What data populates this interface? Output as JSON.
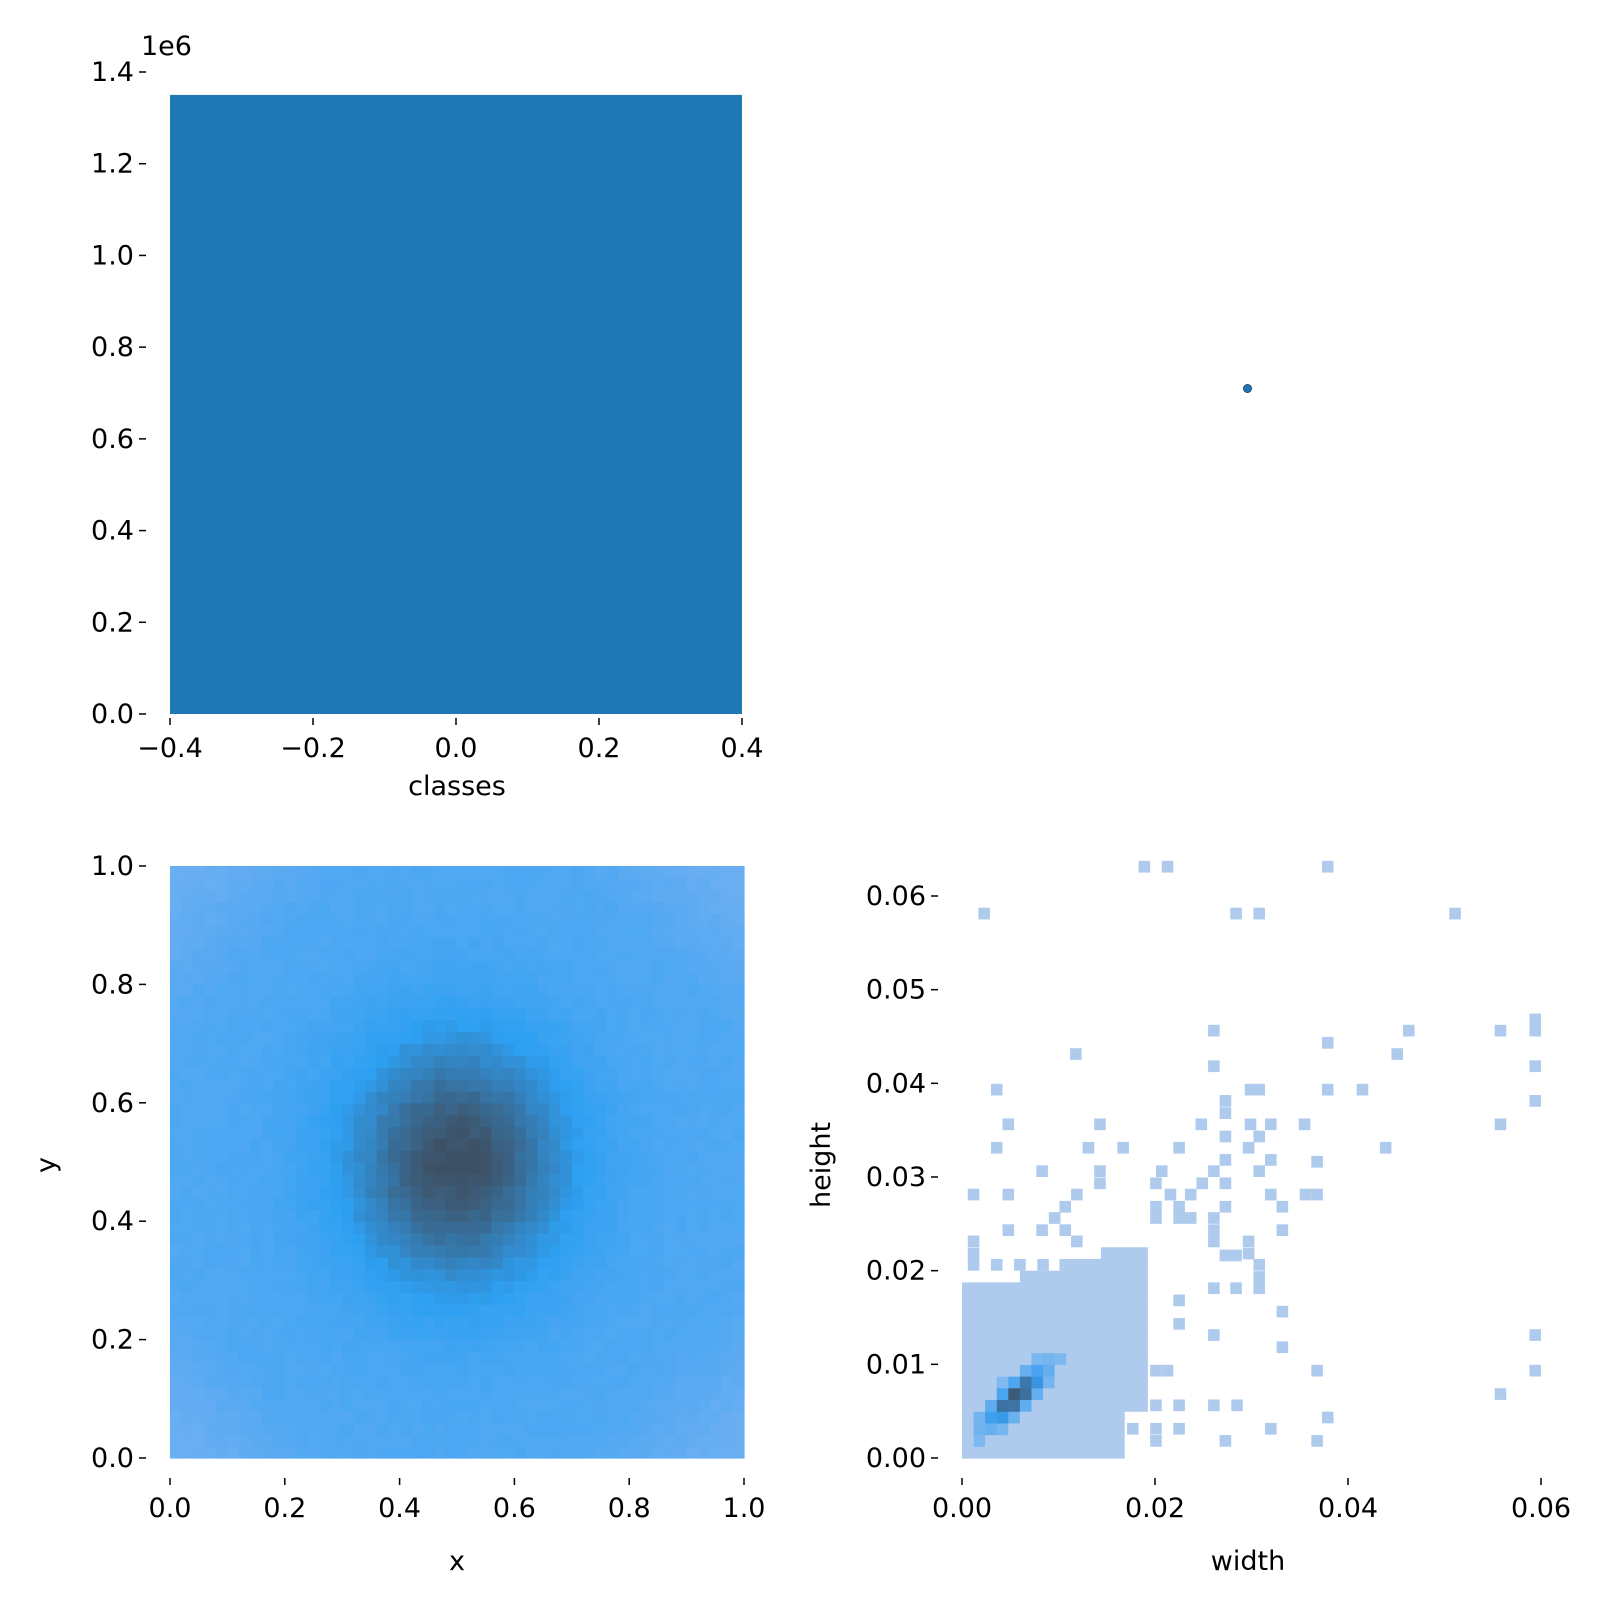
{
  "chart_data": [
    {
      "type": "bar",
      "xlabel": "classes",
      "ylabel": "",
      "xlim": [
        -0.4,
        0.4
      ],
      "ylim": [
        0,
        1400000
      ],
      "offset_label": "1e6",
      "x_ticks": [
        "−0.4",
        "−0.2",
        "0.0",
        "0.2",
        "0.4"
      ],
      "y_ticks": [
        "0.0",
        "0.2",
        "0.4",
        "0.6",
        "0.8",
        "1.0",
        "1.2",
        "1.4"
      ],
      "bars": [
        {
          "x_start": -0.4,
          "x_end": 0.4,
          "value": 1350000
        }
      ],
      "color": "#1f77b4"
    },
    {
      "type": "scatter",
      "xlabel": "",
      "ylabel": "",
      "points": [
        {
          "x": 0.5,
          "y": 0.5
        }
      ],
      "xlim": [
        0,
        1
      ],
      "ylim": [
        0,
        1
      ],
      "color": "#1f77b4",
      "axes_visible": false
    },
    {
      "type": "heatmap",
      "xlabel": "x",
      "ylabel": "y",
      "xlim": [
        0,
        1
      ],
      "ylim": [
        0,
        1
      ],
      "x_ticks": [
        "0.0",
        "0.2",
        "0.4",
        "0.6",
        "0.8",
        "1.0"
      ],
      "y_ticks": [
        "0.0",
        "0.2",
        "0.4",
        "0.6",
        "0.8",
        "1.0"
      ],
      "bins": 50,
      "description_peak": {
        "x": 0.5,
        "y": 0.5
      },
      "colors": {
        "low": "#6aaef2",
        "mid": "#2ea0f2",
        "high": "#3e5064"
      }
    },
    {
      "type": "heatmap",
      "xlabel": "width",
      "ylabel": "height",
      "xlim": [
        0,
        0.06
      ],
      "ylim": [
        0,
        0.063
      ],
      "x_ticks": [
        "0.00",
        "0.02",
        "0.04",
        "0.06"
      ],
      "y_ticks": [
        "0.00",
        "0.01",
        "0.02",
        "0.03",
        "0.04",
        "0.05",
        "0.06"
      ],
      "x_tick_values": [
        0,
        0.02,
        0.04,
        0.06
      ],
      "y_tick_values": [
        0,
        0.01,
        0.02,
        0.03,
        0.04,
        0.05,
        0.06
      ],
      "peak": {
        "x": 0.005,
        "y": 0.006
      },
      "colors": {
        "low": "#aecbee",
        "mid": "#3a9ef0",
        "high": "#3e5064"
      },
      "sparse_cells": [
        [
          0.0017,
          0.0575
        ],
        [
          0.0183,
          0.0625
        ],
        [
          0.0207,
          0.0625
        ],
        [
          0.0373,
          0.0625
        ],
        [
          0.0278,
          0.0575
        ],
        [
          0.0302,
          0.0575
        ],
        [
          0.0505,
          0.0575
        ],
        [
          0.0255,
          0.045
        ],
        [
          0.0457,
          0.045
        ],
        [
          0.0552,
          0.045
        ],
        [
          0.0588,
          0.045
        ],
        [
          0.0588,
          0.0462
        ],
        [
          0.0112,
          0.0425
        ],
        [
          0.0373,
          0.0437
        ],
        [
          0.0445,
          0.0425
        ],
        [
          0.0255,
          0.0412
        ],
        [
          0.0588,
          0.0412
        ],
        [
          0.003,
          0.0387
        ],
        [
          0.0293,
          0.0387
        ],
        [
          0.0302,
          0.0387
        ],
        [
          0.0373,
          0.0387
        ],
        [
          0.0409,
          0.0387
        ],
        [
          0.0588,
          0.0375
        ],
        [
          0.0267,
          0.0375
        ],
        [
          0.0267,
          0.0362
        ],
        [
          0.0042,
          0.035
        ],
        [
          0.0137,
          0.035
        ],
        [
          0.0242,
          0.035
        ],
        [
          0.0293,
          0.035
        ],
        [
          0.0314,
          0.035
        ],
        [
          0.0349,
          0.035
        ],
        [
          0.0552,
          0.035
        ],
        [
          0.0267,
          0.0337
        ],
        [
          0.0302,
          0.0337
        ],
        [
          0.003,
          0.0325
        ],
        [
          0.0125,
          0.0325
        ],
        [
          0.0161,
          0.0325
        ],
        [
          0.0219,
          0.0325
        ],
        [
          0.0291,
          0.0325
        ],
        [
          0.0433,
          0.0325
        ],
        [
          0.0267,
          0.0312
        ],
        [
          0.0314,
          0.0312
        ],
        [
          0.0362,
          0.031
        ],
        [
          0.0077,
          0.03
        ],
        [
          0.0137,
          0.03
        ],
        [
          0.0201,
          0.03
        ],
        [
          0.0255,
          0.03
        ],
        [
          0.0302,
          0.03
        ],
        [
          0.0137,
          0.0287
        ],
        [
          0.0195,
          0.0287
        ],
        [
          0.0243,
          0.0287
        ],
        [
          0.0267,
          0.0287
        ],
        [
          0.0006,
          0.0275
        ],
        [
          0.0042,
          0.0275
        ],
        [
          0.0113,
          0.0275
        ],
        [
          0.021,
          0.0275
        ],
        [
          0.0231,
          0.0275
        ],
        [
          0.0314,
          0.0275
        ],
        [
          0.035,
          0.0275
        ],
        [
          0.0362,
          0.0275
        ],
        [
          0.0101,
          0.0262
        ],
        [
          0.0195,
          0.0262
        ],
        [
          0.0219,
          0.0262
        ],
        [
          0.0267,
          0.0262
        ],
        [
          0.0326,
          0.0262
        ],
        [
          0.009,
          0.025
        ],
        [
          0.0195,
          0.025
        ],
        [
          0.0219,
          0.025
        ],
        [
          0.0231,
          0.025
        ],
        [
          0.0255,
          0.025
        ],
        [
          0.0042,
          0.0237
        ],
        [
          0.0077,
          0.0237
        ],
        [
          0.0101,
          0.0237
        ],
        [
          0.0255,
          0.0237
        ],
        [
          0.0326,
          0.0237
        ],
        [
          0.0006,
          0.0225
        ],
        [
          0.0113,
          0.0225
        ],
        [
          0.0255,
          0.0225
        ],
        [
          0.0291,
          0.0225
        ],
        [
          0.0006,
          0.02
        ],
        [
          0.003,
          0.02
        ],
        [
          0.0054,
          0.02
        ],
        [
          0.0078,
          0.02
        ],
        [
          0.0101,
          0.02
        ],
        [
          0.0267,
          0.021
        ],
        [
          0.0278,
          0.021
        ],
        [
          0.0291,
          0.0212
        ],
        [
          0.0006,
          0.0212
        ],
        [
          0.0302,
          0.02
        ],
        [
          0.0302,
          0.0187
        ],
        [
          0.0255,
          0.0175
        ],
        [
          0.0278,
          0.0175
        ],
        [
          0.0302,
          0.0175
        ],
        [
          0.0219,
          0.0162
        ],
        [
          0.0326,
          0.015
        ],
        [
          0.0219,
          0.0137
        ],
        [
          0.0255,
          0.0125
        ],
        [
          0.0326,
          0.0112
        ],
        [
          0.0362,
          0.0087
        ],
        [
          0.0195,
          0.0087
        ],
        [
          0.0207,
          0.0087
        ],
        [
          0.0195,
          0.005
        ],
        [
          0.0219,
          0.005
        ],
        [
          0.0255,
          0.005
        ],
        [
          0.0279,
          0.005
        ],
        [
          0.0373,
          0.0037
        ],
        [
          0.0195,
          0.0025
        ],
        [
          0.0219,
          0.0025
        ],
        [
          0.0267,
          0.0012
        ],
        [
          0.0314,
          0.0025
        ],
        [
          0.0362,
          0.0012
        ],
        [
          0.0195,
          0.0012
        ],
        [
          0.0171,
          0.0025
        ],
        [
          0.0588,
          0.0125
        ],
        [
          0.0588,
          0.0087
        ],
        [
          0.0552,
          0.0062
        ]
      ]
    }
  ]
}
